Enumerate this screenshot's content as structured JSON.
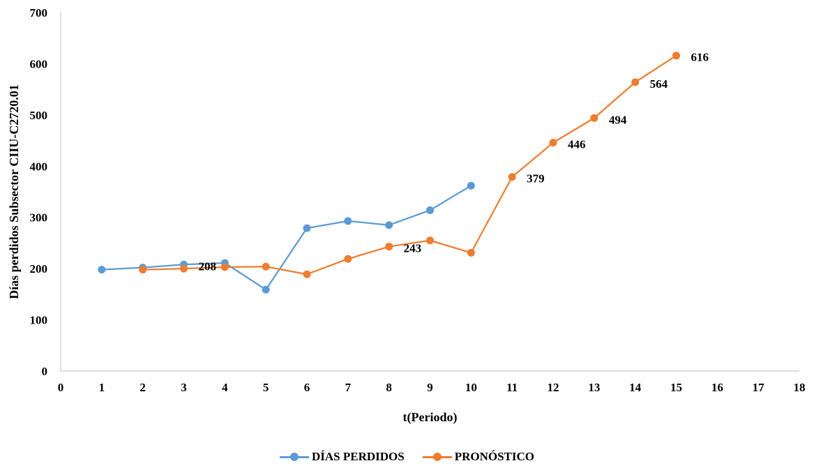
{
  "chart_data": {
    "type": "line",
    "xlabel": "t(Periodo)",
    "ylabel": "Días perdidos  Subsector CIIU-C2720.01",
    "xlim": [
      0,
      18
    ],
    "ylim": [
      0,
      700
    ],
    "x_ticks": [
      0,
      1,
      2,
      3,
      4,
      5,
      6,
      7,
      8,
      9,
      10,
      11,
      12,
      13,
      14,
      15,
      16,
      17,
      18
    ],
    "y_ticks": [
      0,
      100,
      200,
      300,
      400,
      500,
      600,
      700
    ],
    "grid": false,
    "legend_position": "bottom",
    "series": [
      {
        "name": "DÍAS PERDIDOS",
        "color": "#5b9bd5",
        "x": [
          1,
          2,
          3,
          4,
          5,
          6,
          7,
          8,
          9,
          10
        ],
        "y": [
          198,
          202,
          208,
          211,
          159,
          279,
          293,
          285,
          314,
          362
        ]
      },
      {
        "name": "PRONÓSTICO",
        "color": "#ed7d31",
        "x": [
          2,
          3,
          4,
          5,
          6,
          7,
          8,
          9,
          10,
          11,
          12,
          13,
          14,
          15
        ],
        "y": [
          198,
          200,
          203,
          204,
          189,
          219,
          243,
          255,
          231,
          379,
          446,
          494,
          564,
          616
        ]
      }
    ],
    "data_labels": [
      {
        "text": "208",
        "x": 3,
        "y": 208
      },
      {
        "text": "243",
        "x": 8,
        "y": 243
      },
      {
        "text": "379",
        "x": 11,
        "y": 379
      },
      {
        "text": "446",
        "x": 12,
        "y": 446
      },
      {
        "text": "494",
        "x": 13,
        "y": 494
      },
      {
        "text": "564",
        "x": 14,
        "y": 564
      },
      {
        "text": "616",
        "x": 15,
        "y": 616
      }
    ]
  }
}
